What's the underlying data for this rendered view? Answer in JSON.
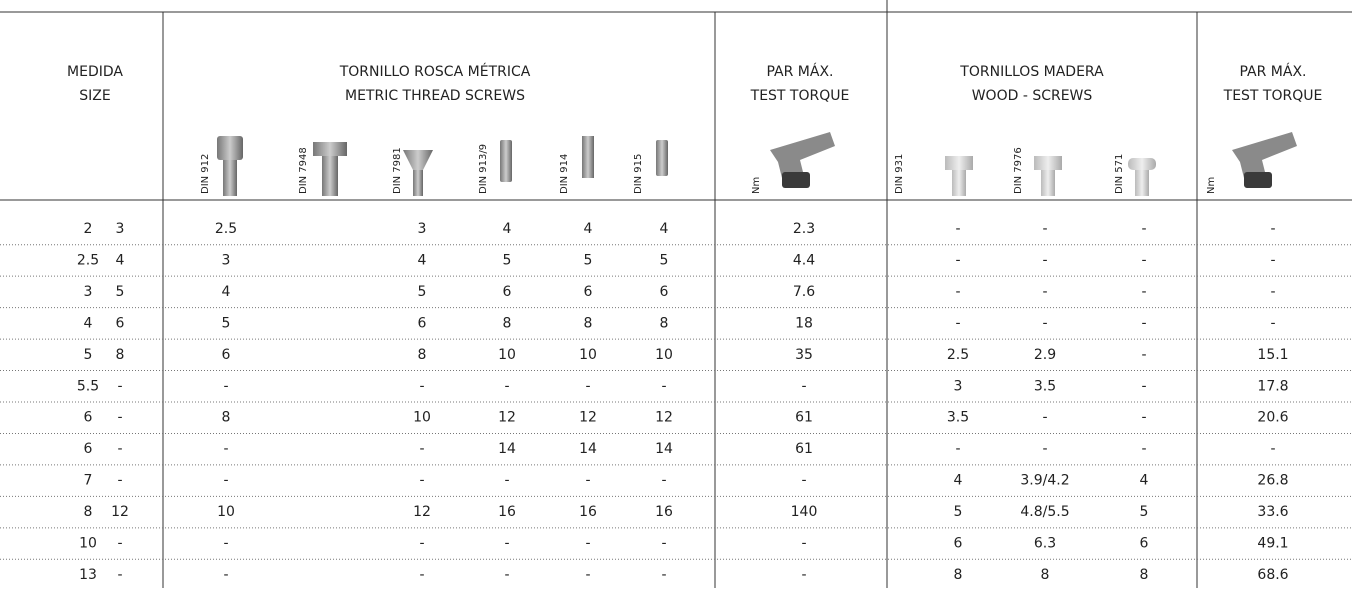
{
  "header": {
    "size": [
      "MEDIDA",
      "SIZE"
    ],
    "metric": [
      "TORNILLO ROSCA MÉTRICA",
      "METRIC THREAD SCREWS"
    ],
    "torque_metric": [
      "PAR MÁX.",
      "TEST TORQUE"
    ],
    "wood": [
      "TORNILLOS MADERA",
      "WOOD - SCREWS"
    ],
    "torque_wood": [
      "PAR MÁX.",
      "TEST TORQUE"
    ]
  },
  "subheaders": [
    "DIN 912",
    "DIN 7948",
    "DIN 7981",
    "DIN 913/9",
    "DIN 914",
    "DIN 915",
    "Nm",
    "DIN 931",
    "DIN 7976",
    "DIN 571",
    "Nm"
  ],
  "table": {
    "rows": [
      [
        2,
        3,
        2.5,
        3,
        4,
        4,
        4,
        2.3,
        "-",
        "-",
        "-",
        "-"
      ],
      [
        2.5,
        4,
        3,
        4,
        5,
        5,
        5,
        4.4,
        "-",
        "-",
        "-",
        "-"
      ],
      [
        3,
        5,
        4,
        5,
        6,
        6,
        6,
        7.6,
        "-",
        "-",
        "-",
        "-"
      ],
      [
        4,
        6,
        5,
        6,
        8,
        8,
        8,
        18,
        "-",
        "-",
        "-",
        "-"
      ],
      [
        5,
        8,
        6,
        8,
        10,
        10,
        10,
        35,
        2.5,
        2.9,
        "-",
        15.1
      ],
      [
        5.5,
        "-",
        "-",
        "-",
        "-",
        "-",
        "-",
        "-",
        3,
        3.5,
        "-",
        17.8
      ],
      [
        6,
        "-",
        8,
        10,
        12,
        12,
        12,
        61,
        3.5,
        "-",
        "-",
        20.6
      ],
      [
        6,
        "-",
        "-",
        "-",
        14,
        14,
        14,
        61,
        "-",
        "-",
        "-",
        "-"
      ],
      [
        7,
        "-",
        "-",
        "-",
        "-",
        "-",
        "-",
        "-",
        4,
        "3.9/4.2",
        4,
        26.8
      ],
      [
        8,
        12,
        10,
        12,
        16,
        16,
        16,
        140,
        5,
        "4.8/5.5",
        5,
        33.6
      ],
      [
        10,
        "-",
        "-",
        "-",
        "-",
        "-",
        "-",
        "-",
        6,
        6.3,
        6,
        49.1
      ],
      [
        13,
        "-",
        "-",
        "-",
        "-",
        "-",
        "-",
        "-",
        8,
        8,
        8,
        68.6
      ]
    ]
  }
}
